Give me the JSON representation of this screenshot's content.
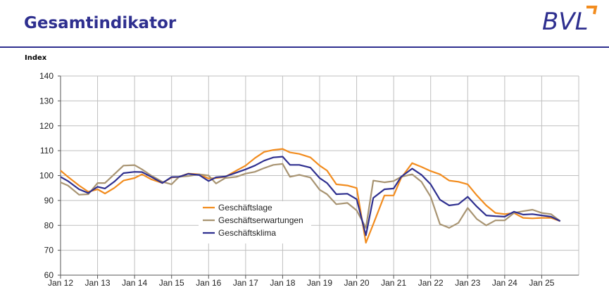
{
  "header": {
    "title": "Gesamtindikator",
    "logo_text": "BVL",
    "logo_color": "#2e2f8f",
    "logo_accent": "#f28c1e"
  },
  "chart_data": {
    "type": "line",
    "ylabel": "Index",
    "ylim": [
      60,
      140
    ],
    "yticks": [
      60,
      70,
      80,
      90,
      100,
      110,
      120,
      130,
      140
    ],
    "xlim": [
      2012,
      2026
    ],
    "xticks": [
      {
        "x": 2012,
        "label": "Jan 12"
      },
      {
        "x": 2013,
        "label": "Jan 13"
      },
      {
        "x": 2014,
        "label": "Jan 14"
      },
      {
        "x": 2015,
        "label": "Jan 15"
      },
      {
        "x": 2016,
        "label": "Jan 16"
      },
      {
        "x": 2017,
        "label": "Jan 17"
      },
      {
        "x": 2018,
        "label": "Jan 18"
      },
      {
        "x": 2019,
        "label": "Jan 19"
      },
      {
        "x": 2020,
        "label": "Jan 20"
      },
      {
        "x": 2021,
        "label": "Jan 21"
      },
      {
        "x": 2022,
        "label": "Jan 22"
      },
      {
        "x": 2023,
        "label": "Jan 23"
      },
      {
        "x": 2024,
        "label": "Jan 24"
      },
      {
        "x": 2025,
        "label": "Jan 25"
      }
    ],
    "grid": true,
    "legend": "center-left",
    "x": [
      2012.0,
      2012.2,
      2012.5,
      2012.75,
      2013.0,
      2013.2,
      2013.45,
      2013.7,
      2014.0,
      2014.2,
      2014.45,
      2014.75,
      2015.0,
      2015.2,
      2015.45,
      2015.75,
      2016.0,
      2016.2,
      2016.45,
      2016.75,
      2017.0,
      2017.25,
      2017.5,
      2017.75,
      2018.0,
      2018.2,
      2018.45,
      2018.75,
      2019.0,
      2019.2,
      2019.45,
      2019.75,
      2020.0,
      2020.25,
      2020.45,
      2020.75,
      2021.0,
      2021.2,
      2021.5,
      2021.75,
      2022.0,
      2022.25,
      2022.5,
      2022.75,
      2023.0,
      2023.25,
      2023.5,
      2023.75,
      2024.0,
      2024.25,
      2024.5,
      2024.75,
      2025.0,
      2025.25,
      2025.5
    ],
    "series": [
      {
        "name": "Geschäftslage",
        "color": "#f28c1e",
        "values": [
          102,
          99.5,
          96,
          93.5,
          94.5,
          92.8,
          95,
          98,
          99,
          100.5,
          98.5,
          97,
          99.2,
          99.5,
          100.8,
          100.5,
          98.8,
          99,
          99.5,
          102,
          104,
          107,
          109.5,
          110.3,
          110.7,
          109.3,
          108.7,
          107.3,
          104,
          102,
          96.5,
          96,
          95,
          73,
          80.5,
          92,
          92,
          99,
          105,
          103.5,
          101.8,
          100.5,
          98,
          97.5,
          96.5,
          92,
          88,
          85,
          84.5,
          85,
          83,
          82.8,
          83,
          83,
          81.7
        ]
      },
      {
        "name": "Geschäftserwartungen",
        "color": "#a89472",
        "values": [
          97.3,
          96,
          92.3,
          92.5,
          97,
          97,
          100.5,
          104,
          104.2,
          102.5,
          100,
          97.5,
          96.5,
          99.5,
          99.8,
          100.5,
          100,
          96.8,
          99,
          99.5,
          100.8,
          101.5,
          103,
          104.3,
          104.7,
          99.5,
          100.3,
          99.2,
          94.3,
          92.5,
          88.5,
          89,
          86,
          79,
          98,
          97.3,
          97.8,
          99.5,
          100.5,
          97.5,
          91.5,
          80.5,
          79,
          81,
          87,
          82.5,
          80,
          82,
          82,
          85,
          85.7,
          86.3,
          85,
          84.5,
          81.7
        ]
      },
      {
        "name": "Geschäftsklima",
        "color": "#2e2f8f",
        "values": [
          99.5,
          97.8,
          94.5,
          93,
          95.5,
          94.8,
          97.5,
          101,
          101.5,
          101.4,
          99.5,
          97,
          99.4,
          99.5,
          100.7,
          100.2,
          97.8,
          99.3,
          99.6,
          101.2,
          102.5,
          104,
          106,
          107.3,
          107.6,
          104.3,
          104.3,
          103.2,
          99,
          97,
          92.5,
          92.7,
          90.5,
          76,
          91,
          94.5,
          94.8,
          99.5,
          102.8,
          100.3,
          96.5,
          90.3,
          88,
          88.5,
          91.5,
          87.5,
          84,
          83.7,
          83.5,
          85.5,
          84.3,
          84.5,
          84,
          83.5,
          81.7
        ]
      }
    ]
  }
}
